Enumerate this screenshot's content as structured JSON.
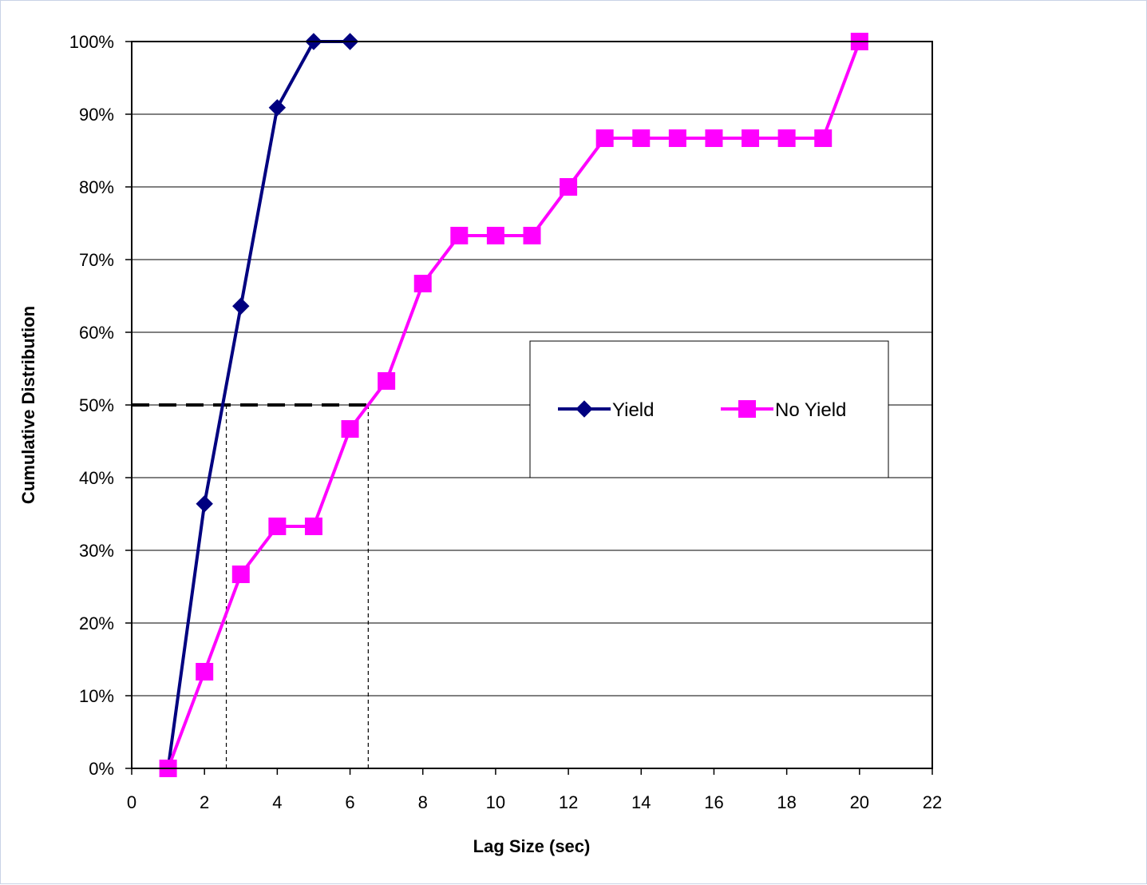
{
  "chart_data": {
    "type": "line",
    "title": "",
    "xlabel": "Lag Size (sec)",
    "ylabel": "Cumulative Distribution",
    "xlim": [
      0,
      22
    ],
    "ylim": [
      0,
      1
    ],
    "x_ticks": [
      0,
      2,
      4,
      6,
      8,
      10,
      12,
      14,
      16,
      18,
      20,
      22
    ],
    "x_tick_labels": [
      "0",
      "2",
      "4",
      "6",
      "8",
      "10",
      "12",
      "14",
      "16",
      "18",
      "20",
      "22"
    ],
    "y_ticks": [
      0,
      0.1,
      0.2,
      0.3,
      0.4,
      0.5,
      0.6,
      0.7,
      0.8,
      0.9,
      1.0
    ],
    "y_tick_labels": [
      "0%",
      "10%",
      "20%",
      "30%",
      "40%",
      "50%",
      "60%",
      "70%",
      "80%",
      "90%",
      "100%"
    ],
    "grid": "horizontal",
    "legend_position": "center-right",
    "series": [
      {
        "name": "Yield",
        "color": "#000080",
        "marker": "diamond",
        "x": [
          1,
          2,
          3,
          4,
          5,
          6
        ],
        "y": [
          0.0,
          0.364,
          0.636,
          0.909,
          1.0,
          1.0
        ]
      },
      {
        "name": "No Yield",
        "color": "#ff00ff",
        "marker": "square",
        "x": [
          1,
          2,
          3,
          4,
          5,
          6,
          7,
          8,
          9,
          10,
          11,
          12,
          13,
          14,
          15,
          16,
          17,
          18,
          19,
          20
        ],
        "y": [
          0.0,
          0.133,
          0.267,
          0.333,
          0.333,
          0.467,
          0.533,
          0.667,
          0.733,
          0.733,
          0.733,
          0.8,
          0.867,
          0.867,
          0.867,
          0.867,
          0.867,
          0.867,
          0.867,
          1.0
        ]
      }
    ],
    "reference_lines": {
      "median_level": 0.5,
      "median_x_yield": 2.6,
      "median_x_no_yield": 6.5,
      "color": "#000000"
    }
  }
}
